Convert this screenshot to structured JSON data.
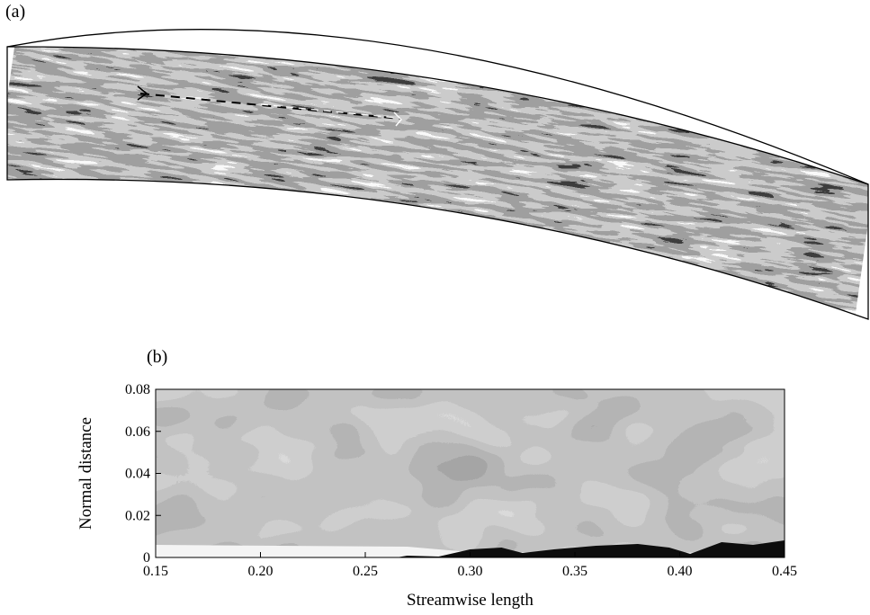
{
  "figure": {
    "panel_a_label": "(a)",
    "panel_b_label": "(b)"
  },
  "panel_a": {
    "kind": "curved blade-passage visualization",
    "colors": {
      "dark": "#111111",
      "light": "#f2f2f2",
      "outline": "#000000"
    }
  },
  "chart_data": {
    "type": "heatmap",
    "title": "",
    "xlabel": "Streamwise length",
    "ylabel": "Normal distance",
    "xlim": [
      0.15,
      0.45
    ],
    "ylim": [
      0,
      0.08
    ],
    "x_ticks": [
      "0.15",
      "0.20",
      "0.25",
      "0.30",
      "0.35",
      "0.40",
      "0.45"
    ],
    "y_ticks": [
      "0",
      "0.02",
      "0.04",
      "0.06",
      "0.08"
    ],
    "x_tick_values": [
      0.15,
      0.2,
      0.25,
      0.3,
      0.35,
      0.4,
      0.45
    ],
    "y_tick_values": [
      0,
      0.02,
      0.04,
      0.06,
      0.08
    ],
    "grid": false,
    "colormap": "grayscale"
  }
}
